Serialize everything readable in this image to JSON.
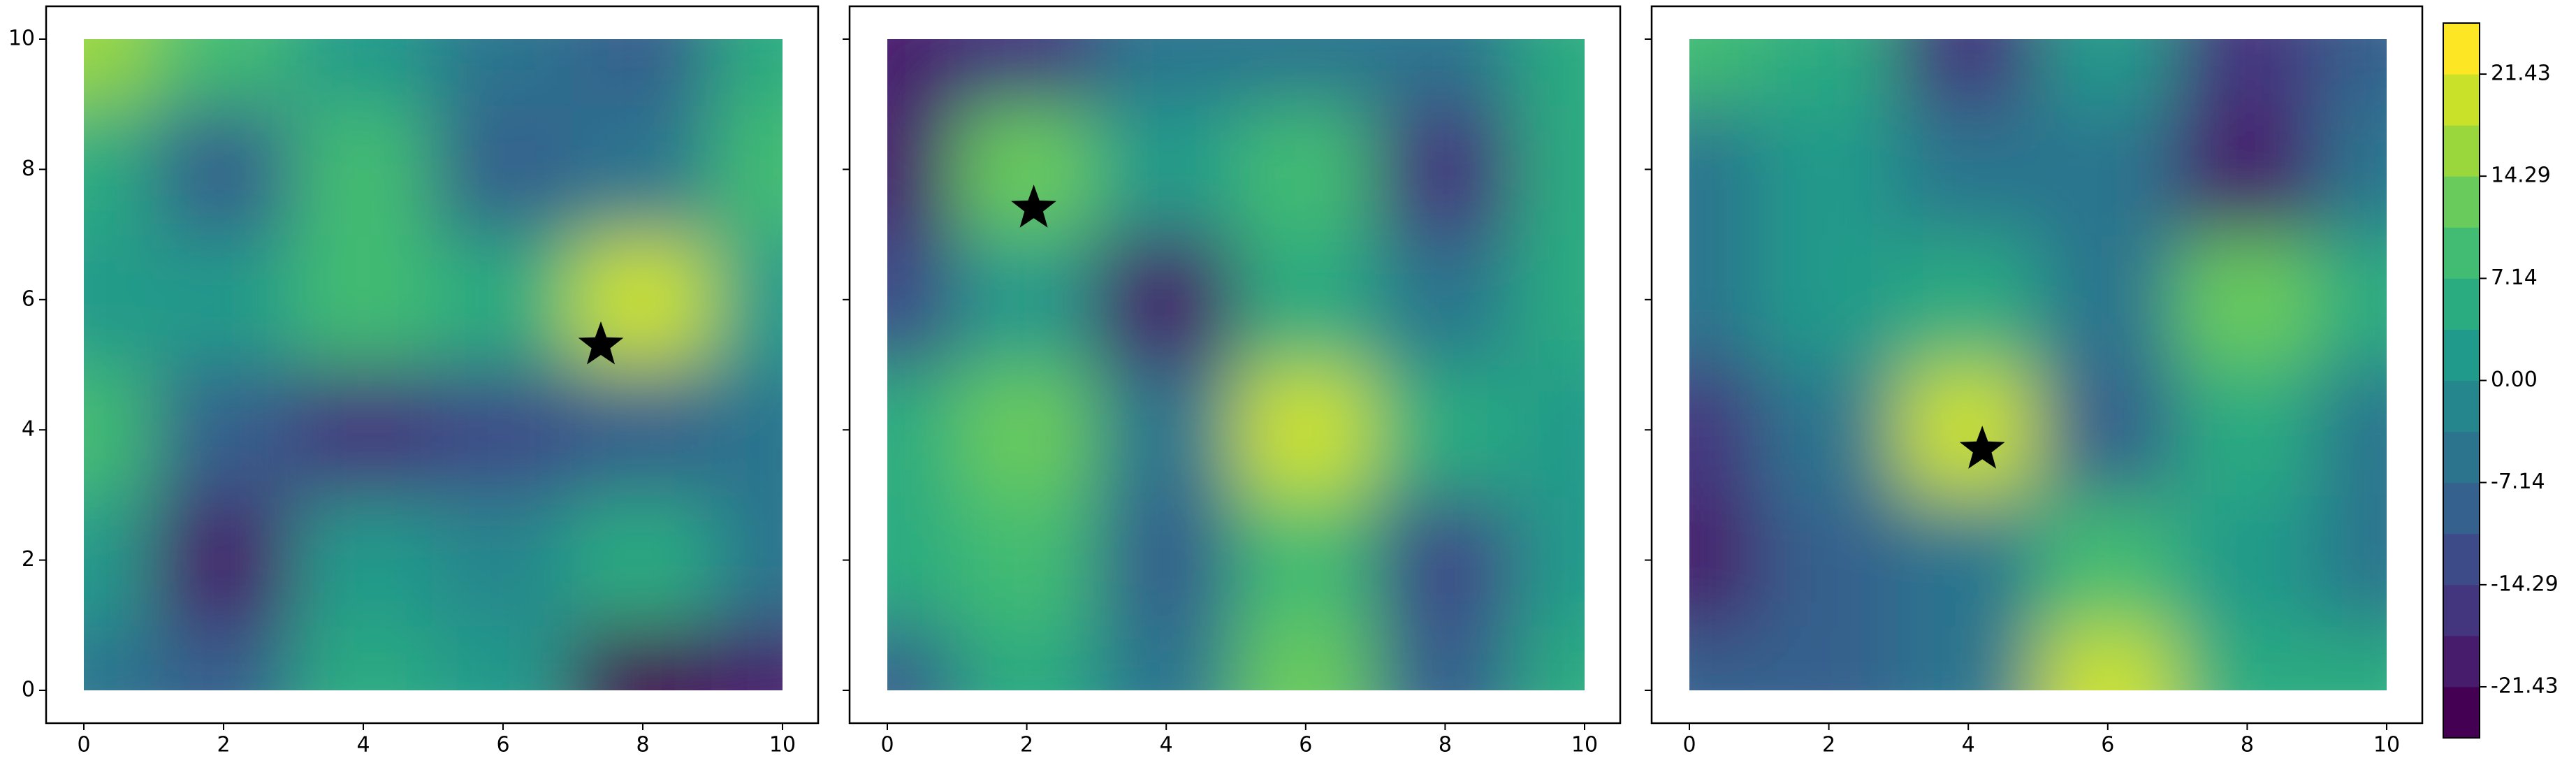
{
  "chart_data": [
    {
      "type": "contour",
      "x": [
        0,
        2,
        4,
        6,
        8,
        10
      ],
      "y": [
        0,
        2,
        4,
        6,
        8,
        10
      ],
      "z": [
        [
          -5,
          -10,
          7,
          0,
          -22,
          -20
        ],
        [
          0,
          -18,
          0,
          -3,
          5,
          -5
        ],
        [
          10,
          -10,
          -17,
          -12,
          -10,
          -5
        ],
        [
          0,
          0,
          10,
          5,
          18,
          0
        ],
        [
          5,
          -10,
          10,
          -10,
          -5,
          10
        ],
        [
          15,
          10,
          0,
          -5,
          -10,
          5
        ]
      ],
      "star": [
        7.4,
        5.3
      ],
      "xlim": [
        0,
        10
      ],
      "ylim": [
        0,
        10
      ],
      "xticks": [
        0,
        2,
        4,
        6,
        8,
        10
      ],
      "yticks": [
        0,
        2,
        4,
        6,
        8,
        10
      ]
    },
    {
      "type": "contour",
      "x": [
        0,
        2,
        4,
        6,
        8,
        10
      ],
      "y": [
        0,
        2,
        4,
        6,
        8,
        10
      ],
      "z": [
        [
          -10,
          5,
          -5,
          14,
          -10,
          5
        ],
        [
          5,
          10,
          -10,
          10,
          -14,
          0
        ],
        [
          5,
          14,
          -5,
          18,
          5,
          0
        ],
        [
          -12,
          0,
          -18,
          5,
          -5,
          5
        ],
        [
          -20,
          14,
          0,
          10,
          -15,
          5
        ],
        [
          -20,
          -15,
          -5,
          -5,
          -5,
          5
        ]
      ],
      "star": [
        2.1,
        7.4
      ],
      "xlim": [
        0,
        10
      ],
      "ylim": [
        0,
        10
      ],
      "xticks": [
        0,
        2,
        4,
        6,
        8,
        10
      ]
    },
    {
      "type": "contour",
      "x": [
        0,
        2,
        4,
        6,
        8,
        10
      ],
      "y": [
        0,
        2,
        4,
        6,
        8,
        10
      ],
      "z": [
        [
          -10,
          -10,
          -5,
          20,
          5,
          5
        ],
        [
          -20,
          -10,
          -5,
          10,
          0,
          -5
        ],
        [
          -15,
          -5,
          20,
          -10,
          5,
          -5
        ],
        [
          -5,
          0,
          5,
          -5,
          14,
          5
        ],
        [
          -5,
          0,
          -5,
          -5,
          -20,
          -5
        ],
        [
          10,
          5,
          -15,
          0,
          -15,
          -10
        ]
      ],
      "star": [
        4.2,
        3.7
      ],
      "xlim": [
        0,
        10
      ],
      "ylim": [
        0,
        10
      ],
      "xticks": [
        0,
        2,
        4,
        6,
        8,
        10
      ]
    },
    {
      "type": "colorbar",
      "colormap": "viridis",
      "clim": [
        -25,
        25
      ],
      "levels": 14,
      "ticks": [
        -21.43,
        -14.29,
        -7.14,
        {
          "value": 0,
          "label": "0.00"
        },
        7.14,
        14.29,
        21.43
      ]
    }
  ]
}
